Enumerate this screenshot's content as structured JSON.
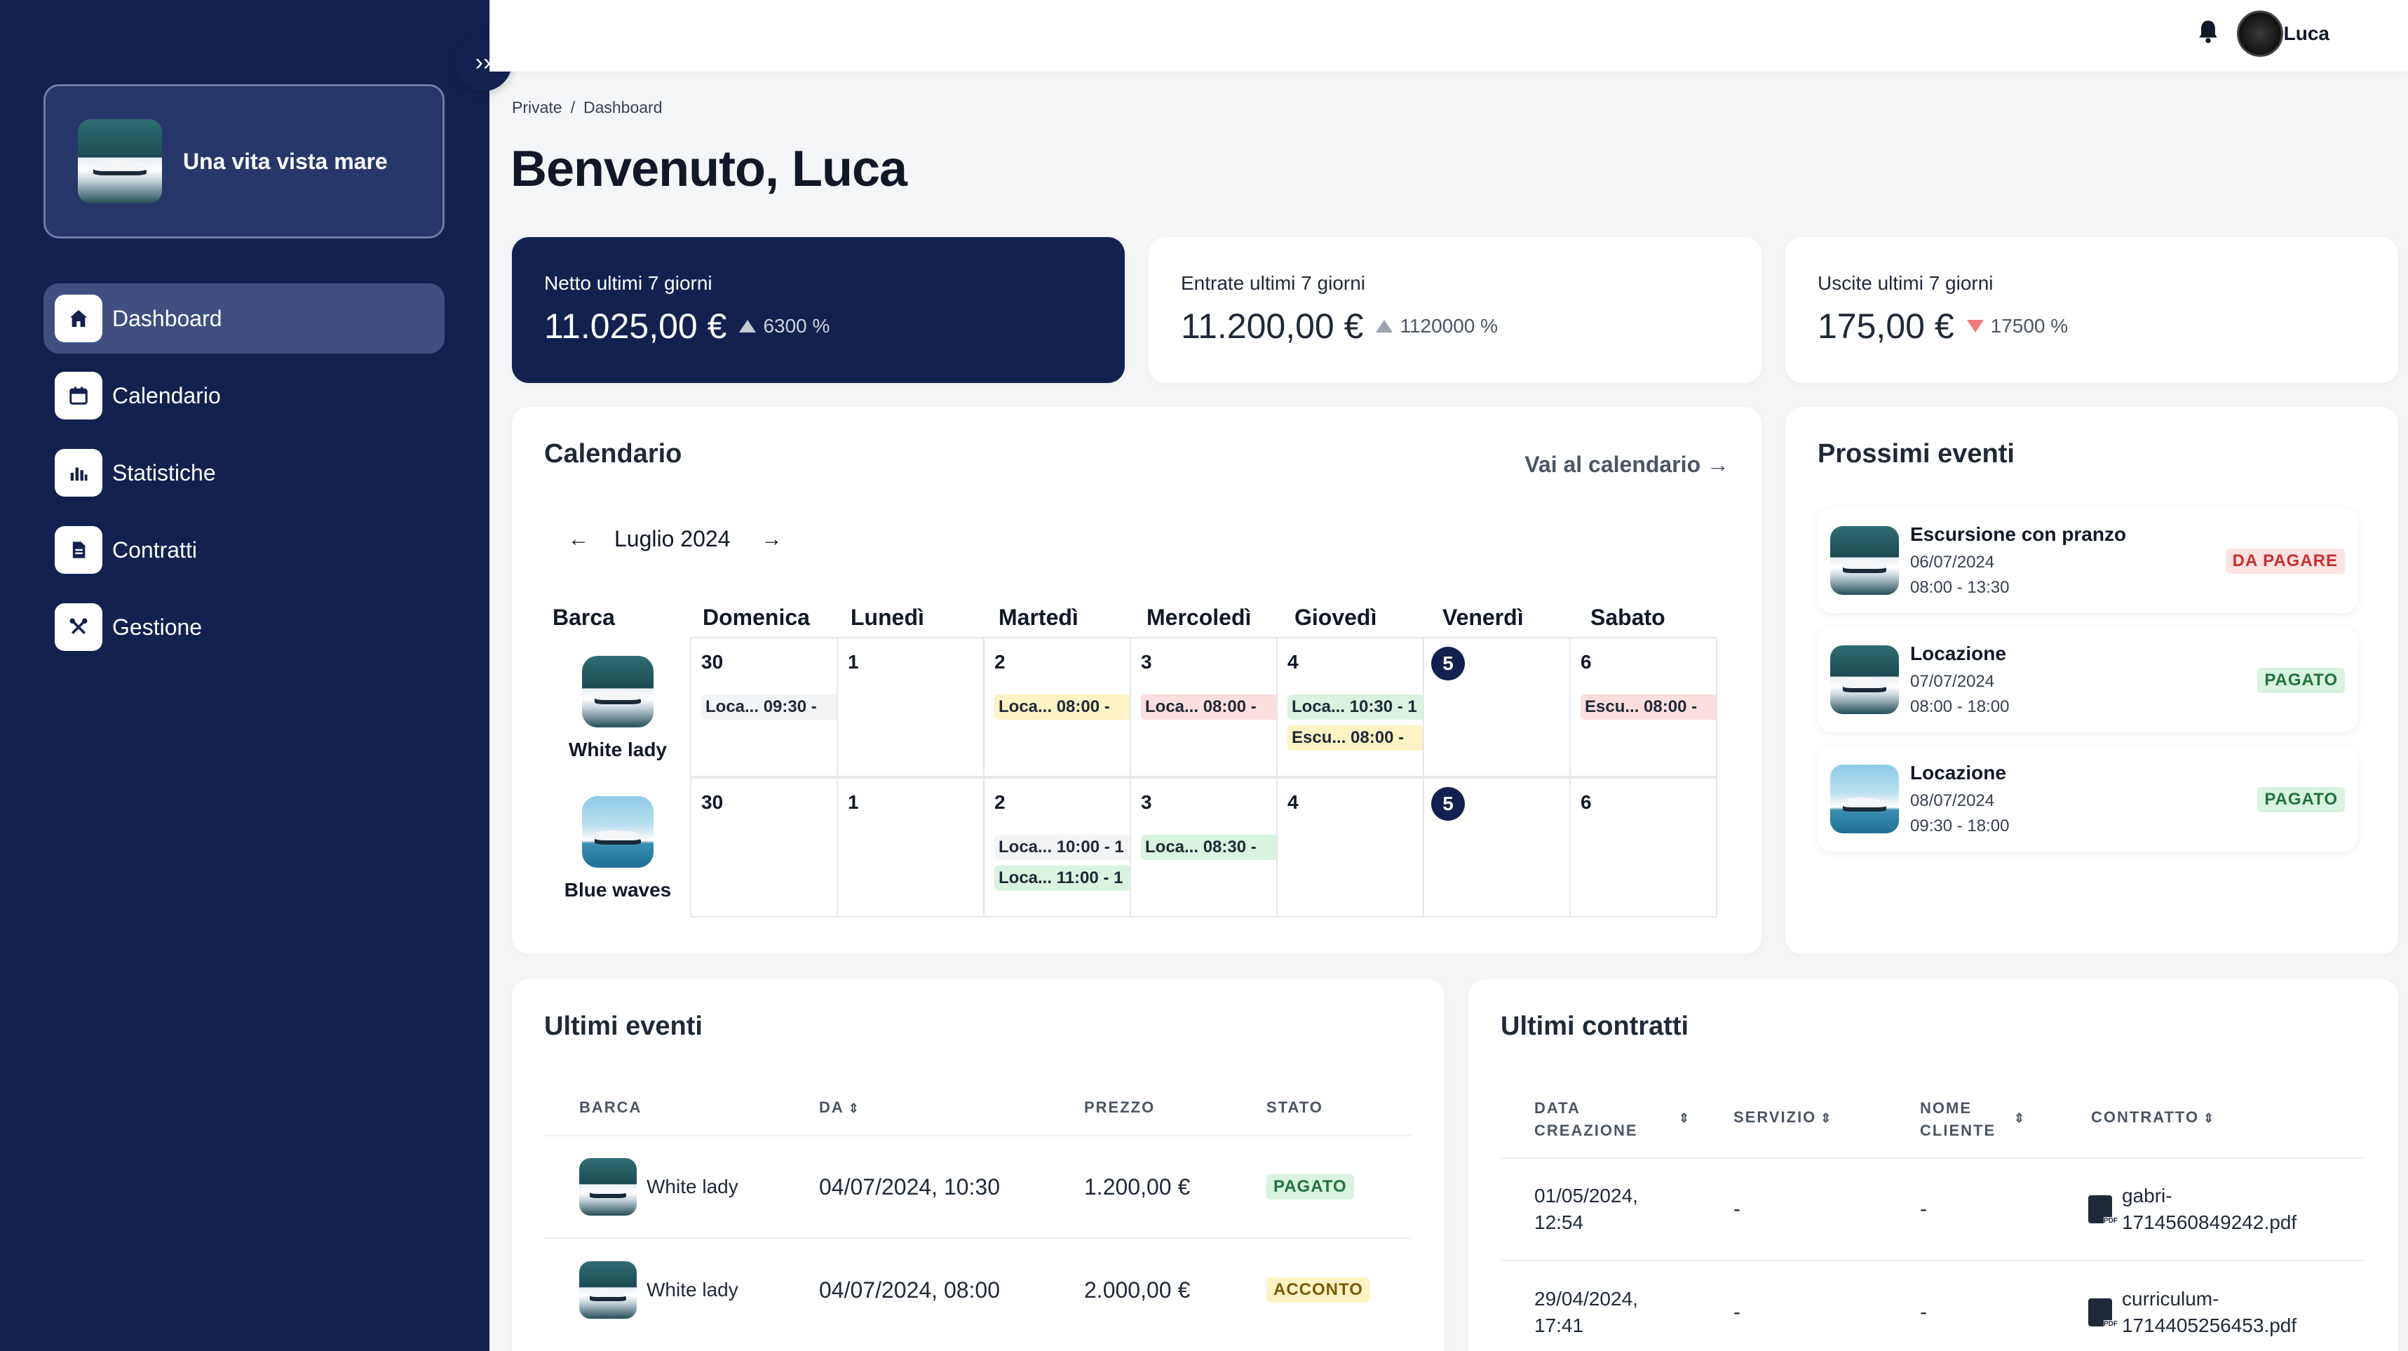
{
  "sidebar": {
    "brand": "Una vita vista mare",
    "items": [
      {
        "label": "Dashboard",
        "icon": "home-icon"
      },
      {
        "label": "Calendario",
        "icon": "calendar-icon"
      },
      {
        "label": "Statistiche",
        "icon": "bar-chart-icon"
      },
      {
        "label": "Contratti",
        "icon": "document-icon"
      },
      {
        "label": "Gestione",
        "icon": "tools-icon"
      }
    ],
    "collapse_glyph": "››"
  },
  "topbar": {
    "user": "Luca",
    "bell_glyph": "🔔"
  },
  "breadcrumb": {
    "root": "Private",
    "sep": "/",
    "current": "Dashboard"
  },
  "title": "Benvenuto, Luca",
  "stats": [
    {
      "label": "Netto ultimi 7 giorni",
      "value": "11.025,00 €",
      "trend": "6300 %",
      "direction": "up"
    },
    {
      "label": "Entrate ultimi 7 giorni",
      "value": "11.200,00 €",
      "trend": "1120000 %",
      "direction": "up"
    },
    {
      "label": "Uscite ultimi 7 giorni",
      "value": "175,00 €",
      "trend": "17500 %",
      "direction": "down"
    }
  ],
  "calendar": {
    "title": "Calendario",
    "link": "Vai al calendario",
    "link_arrow": "→",
    "prev": "←",
    "next": "→",
    "month": "Luglio 2024",
    "headers": [
      "Barca",
      "Domenica",
      "Lunedì",
      "Martedì",
      "Mercoledì",
      "Giovedì",
      "Venerdì",
      "Sabato"
    ],
    "rows": [
      {
        "boat": "White lady",
        "days": [
          {
            "num": "30",
            "events": [
              {
                "text": "Loca... 09:30 -",
                "color": "grey"
              }
            ]
          },
          {
            "num": "1",
            "events": []
          },
          {
            "num": "2",
            "events": [
              {
                "text": "Loca... 08:00 -",
                "color": "yellow"
              }
            ]
          },
          {
            "num": "3",
            "events": [
              {
                "text": "Loca... 08:00 -",
                "color": "red"
              }
            ]
          },
          {
            "num": "4",
            "events": [
              {
                "text": "Loca... 10:30 - 1",
                "color": "green"
              },
              {
                "text": "Escu... 08:00 -",
                "color": "yellow"
              }
            ]
          },
          {
            "num": "5",
            "today": true,
            "events": []
          },
          {
            "num": "6",
            "events": [
              {
                "text": "Escu... 08:00 -",
                "color": "red"
              }
            ]
          }
        ]
      },
      {
        "boat": "Blue waves",
        "days": [
          {
            "num": "30",
            "events": []
          },
          {
            "num": "1",
            "events": []
          },
          {
            "num": "2",
            "events": [
              {
                "text": "Loca... 10:00 - 1",
                "color": "grey"
              },
              {
                "text": "Loca... 11:00 - 1",
                "color": "green"
              }
            ]
          },
          {
            "num": "3",
            "events": [
              {
                "text": "Loca... 08:30 -",
                "color": "green"
              }
            ]
          },
          {
            "num": "4",
            "events": []
          },
          {
            "num": "5",
            "today": true,
            "events": []
          },
          {
            "num": "6",
            "events": []
          }
        ]
      }
    ]
  },
  "upcoming": {
    "title": "Prossimi eventi",
    "items": [
      {
        "title": "Escursione con pranzo",
        "date": "06/07/2024",
        "time": "08:00 - 13:30",
        "status": "DA PAGARE",
        "color": "red"
      },
      {
        "title": "Locazione",
        "date": "07/07/2024",
        "time": "08:00 - 18:00",
        "status": "PAGATO",
        "color": "green"
      },
      {
        "title": "Locazione",
        "date": "08/07/2024",
        "time": "09:30 - 18:00",
        "status": "PAGATO",
        "color": "green"
      }
    ]
  },
  "last_events": {
    "title": "Ultimi eventi",
    "headers": {
      "barca": "BARCA",
      "da": "DA",
      "prezzo": "PREZZO",
      "stato": "STATO"
    },
    "rows": [
      {
        "boat": "White lady",
        "date": "04/07/2024, 10:30",
        "price": "1.200,00 €",
        "status": "PAGATO",
        "color": "green"
      },
      {
        "boat": "White lady",
        "date": "04/07/2024, 08:00",
        "price": "2.000,00 €",
        "status": "ACCONTO",
        "color": "yellow"
      }
    ]
  },
  "last_contracts": {
    "title": "Ultimi contratti",
    "headers": {
      "data1": "DATA",
      "data2": "CREAZIONE",
      "servizio": "SERVIZIO",
      "nome1": "NOME",
      "nome2": "CLIENTE",
      "contratto": "CONTRATTO"
    },
    "sort_glyph": "⇕",
    "rows": [
      {
        "date1": "01/05/2024,",
        "date2": "12:54",
        "service": "-",
        "client": "-",
        "file1": "gabri-",
        "file2": "1714560849242.pdf"
      },
      {
        "date1": "29/04/2024,",
        "date2": "17:41",
        "service": "-",
        "client": "-",
        "file1": "curriculum-",
        "file2": "1714405256453.pdf"
      }
    ]
  }
}
